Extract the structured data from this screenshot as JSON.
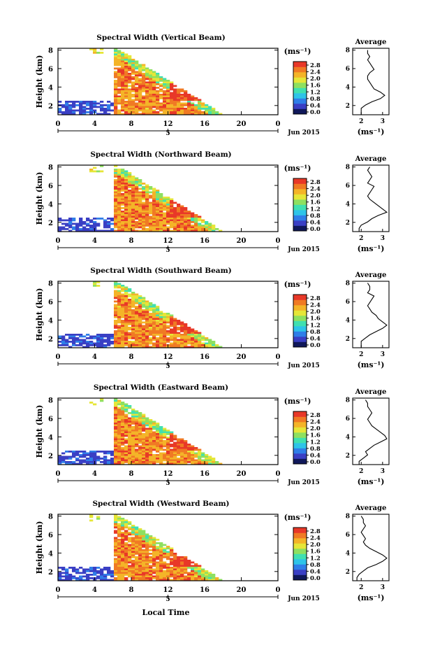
{
  "chart_data": {
    "type": "heatmap",
    "panels": [
      {
        "title": "Spectral Width (Vertical Beam)",
        "avg": [
          2.3,
          2.3,
          2.4,
          2.3,
          2.4,
          2.5,
          2.6,
          2.4,
          2.3,
          2.3,
          2.4,
          2.5,
          2.6,
          2.9,
          3.1,
          2.9,
          2.5,
          2.2,
          2.0,
          2.0,
          2.0
        ],
        "hole": false
      },
      {
        "title": "Spectral Width (Northward Beam)",
        "avg": [
          2.4,
          2.3,
          2.4,
          2.5,
          2.4,
          2.3,
          2.6,
          2.5,
          2.4,
          2.3,
          2.4,
          2.6,
          2.8,
          3.0,
          3.2,
          2.8,
          2.5,
          2.3,
          2.0,
          1.9,
          1.9
        ],
        "hole": false
      },
      {
        "title": "Spectral Width (Southward Beam)",
        "avg": [
          2.3,
          2.4,
          2.4,
          2.3,
          2.6,
          2.5,
          2.4,
          2.3,
          2.4,
          2.5,
          2.7,
          2.8,
          3.0,
          3.2,
          3.0,
          2.7,
          2.4,
          2.2,
          2.0,
          2.0,
          2.0
        ],
        "hole": false
      },
      {
        "title": "Spectral Width (Eastward Beam)",
        "avg": [
          2.2,
          2.3,
          2.3,
          2.4,
          2.5,
          2.4,
          2.3,
          2.4,
          2.5,
          2.7,
          2.9,
          3.1,
          3.2,
          2.9,
          2.6,
          2.4,
          2.2,
          2.3,
          2.1,
          1.9,
          1.9
        ],
        "hole": true
      },
      {
        "title": "Spectral Width (Westward Beam)",
        "avg": [
          2.0,
          2.1,
          2.1,
          2.2,
          2.1,
          2.0,
          2.1,
          2.2,
          2.1,
          2.2,
          2.4,
          2.7,
          3.0,
          3.2,
          3.0,
          2.7,
          2.3,
          2.1,
          1.9,
          1.8,
          1.8
        ],
        "hole": true
      }
    ],
    "y_ticks": [
      "2",
      "4",
      "6",
      "8"
    ],
    "x_ticks": [
      "0",
      "4",
      "8",
      "12",
      "16",
      "20",
      "0"
    ],
    "date_tick": "5",
    "date_label": "Jun 2015",
    "ylabel": "Height (km)",
    "xlabel": "Local Time",
    "ylim": [
      1,
      8.2
    ],
    "xlim": [
      0,
      24
    ],
    "colorbar_unit": "(ms⁻¹)",
    "colorbar_ticks": [
      "0.0",
      "0.4",
      "0.8",
      "1.2",
      "1.6",
      "2.0",
      "2.4",
      "2.8"
    ],
    "colorbar_colors": [
      "#10185a",
      "#3a3fc4",
      "#2f7ee8",
      "#2ec4e8",
      "#40e0b0",
      "#8ee060",
      "#e6e638",
      "#f4b428",
      "#f07a24",
      "#e83828"
    ],
    "avg_title": "Average",
    "avg_xticks": [
      "2",
      "3"
    ],
    "avg_xlim": [
      1.6,
      3.3
    ],
    "avg_unit": "(ms⁻¹)",
    "avg_yticks": [
      "2",
      "4",
      "6",
      "8"
    ]
  }
}
